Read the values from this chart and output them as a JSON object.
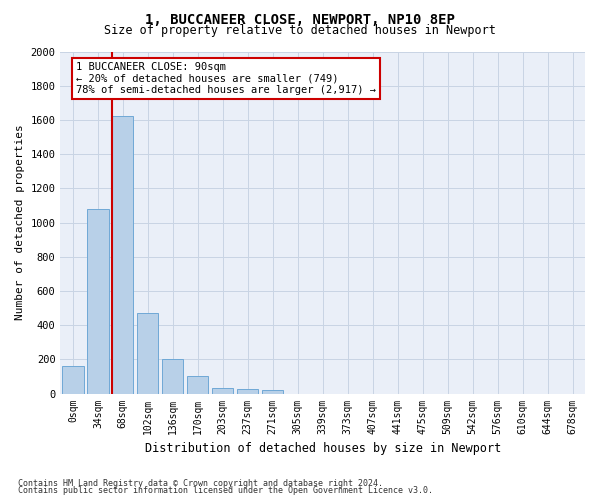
{
  "title1": "1, BUCCANEER CLOSE, NEWPORT, NP10 8EP",
  "title2": "Size of property relative to detached houses in Newport",
  "xlabel": "Distribution of detached houses by size in Newport",
  "ylabel": "Number of detached properties",
  "categories": [
    "0sqm",
    "34sqm",
    "68sqm",
    "102sqm",
    "136sqm",
    "170sqm",
    "203sqm",
    "237sqm",
    "271sqm",
    "305sqm",
    "339sqm",
    "373sqm",
    "407sqm",
    "441sqm",
    "475sqm",
    "509sqm",
    "542sqm",
    "576sqm",
    "610sqm",
    "644sqm",
    "678sqm"
  ],
  "values": [
    160,
    1080,
    1620,
    470,
    200,
    100,
    35,
    25,
    20,
    0,
    0,
    0,
    0,
    0,
    0,
    0,
    0,
    0,
    0,
    0,
    0
  ],
  "bar_color": "#b8d0e8",
  "bar_edge_color": "#6fa8d6",
  "grid_color": "#c8d4e4",
  "background_color": "#eaeff8",
  "vline_color": "#cc0000",
  "annotation_text": "1 BUCCANEER CLOSE: 90sqm\n← 20% of detached houses are smaller (749)\n78% of semi-detached houses are larger (2,917) →",
  "annotation_box_facecolor": "#ffffff",
  "annotation_box_edgecolor": "#cc0000",
  "ylim": [
    0,
    2000
  ],
  "yticks": [
    0,
    200,
    400,
    600,
    800,
    1000,
    1200,
    1400,
    1600,
    1800,
    2000
  ],
  "footnote1": "Contains HM Land Registry data © Crown copyright and database right 2024.",
  "footnote2": "Contains public sector information licensed under the Open Government Licence v3.0."
}
